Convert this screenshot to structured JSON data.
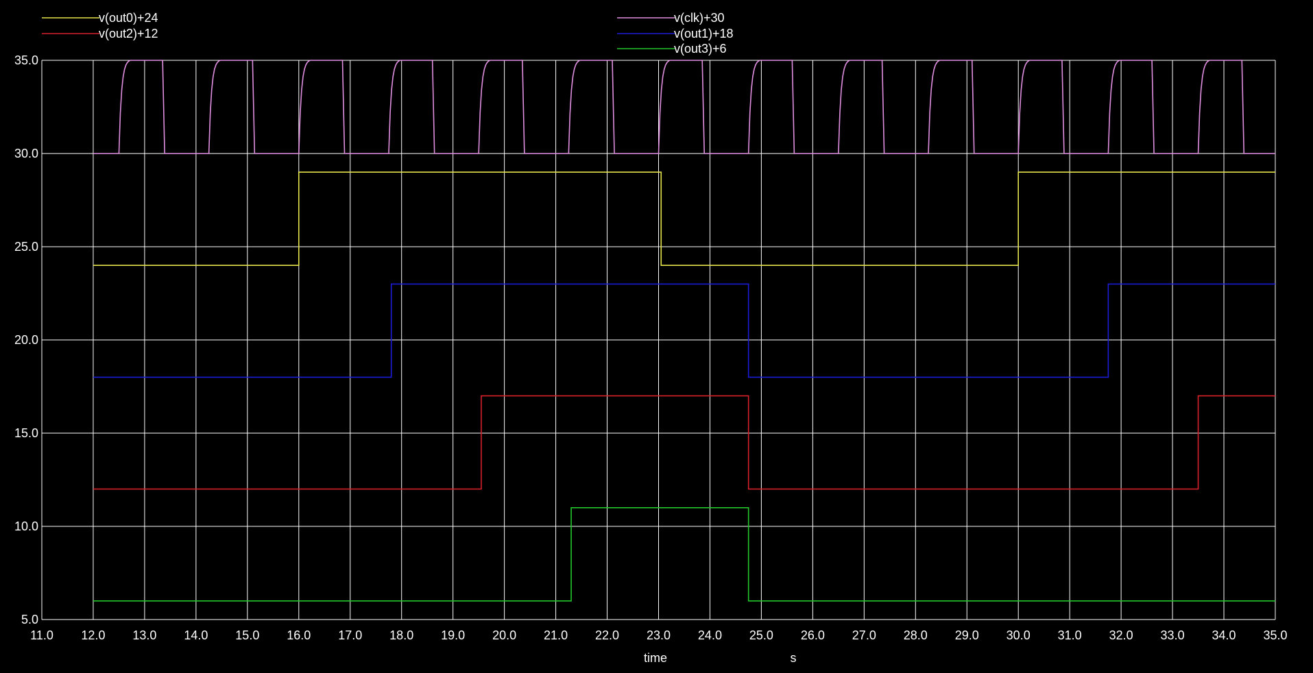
{
  "chart_data": {
    "type": "line",
    "xlabel": "time",
    "xunit": "s",
    "ylabel": "",
    "xlim": [
      11.0,
      35.0
    ],
    "ylim": [
      5.0,
      35.0
    ],
    "xticks": [
      "11.0",
      "12.0",
      "13.0",
      "14.0",
      "15.0",
      "16.0",
      "17.0",
      "18.0",
      "19.0",
      "20.0",
      "21.0",
      "22.0",
      "23.0",
      "24.0",
      "25.0",
      "26.0",
      "27.0",
      "28.0",
      "29.0",
      "30.0",
      "31.0",
      "32.0",
      "33.0",
      "34.0",
      "35.0"
    ],
    "yticks": [
      "5.0",
      "10.0",
      "15.0",
      "20.0",
      "25.0",
      "30.0",
      "35.0"
    ],
    "grid": true,
    "legend_position": "top",
    "background_color": "#000000",
    "grid_color": "#ffffff",
    "series": [
      {
        "name": "v(out0)+24",
        "color": "#e4e44a",
        "legend_col": 0,
        "legend_row": 0,
        "x": [
          12.0,
          16.0,
          16.0,
          23.05,
          23.05,
          30.0,
          30.0,
          35.0
        ],
        "y": [
          24.0,
          24.0,
          29.0,
          29.0,
          24.0,
          24.0,
          29.0,
          29.0
        ]
      },
      {
        "name": "v(out2)+12",
        "color": "#d8202a",
        "legend_col": 0,
        "legend_row": 1,
        "x": [
          12.0,
          19.55,
          19.55,
          24.75,
          24.75,
          33.5,
          33.5,
          35.0
        ],
        "y": [
          12.0,
          12.0,
          17.0,
          17.0,
          12.0,
          12.0,
          17.0,
          17.0
        ]
      },
      {
        "name": "v(clk)+30",
        "color": "#e08fe0",
        "legend_col": 1,
        "legend_row": 0,
        "clock": {
          "low": 30.0,
          "high": 35.0,
          "start": 12.0,
          "end": 35.0,
          "rise_times": [
            12.5,
            14.25,
            16.0,
            17.75,
            19.5,
            21.25,
            23.0,
            24.75,
            26.5,
            28.25,
            30.0,
            31.75,
            33.5
          ],
          "fall_times": [
            13.35,
            15.1,
            16.85,
            18.6,
            20.35,
            22.1,
            23.85,
            25.6,
            27.35,
            29.1,
            30.85,
            32.6,
            34.35
          ],
          "rise_duration": 0.22,
          "fall_duration": 0.04
        }
      },
      {
        "name": "v(out1)+18",
        "color": "#1c1cd8",
        "legend_col": 1,
        "legend_row": 1,
        "x": [
          12.0,
          17.8,
          17.8,
          24.75,
          24.75,
          31.75,
          31.75,
          35.0
        ],
        "y": [
          18.0,
          18.0,
          23.0,
          23.0,
          18.0,
          18.0,
          23.0,
          23.0
        ]
      },
      {
        "name": "v(out3)+6",
        "color": "#22c82a",
        "legend_col": 1,
        "legend_row": 2,
        "x": [
          12.0,
          21.3,
          21.3,
          24.75,
          24.75,
          35.0
        ],
        "y": [
          6.0,
          6.0,
          11.0,
          11.0,
          6.0,
          6.0
        ]
      }
    ]
  }
}
